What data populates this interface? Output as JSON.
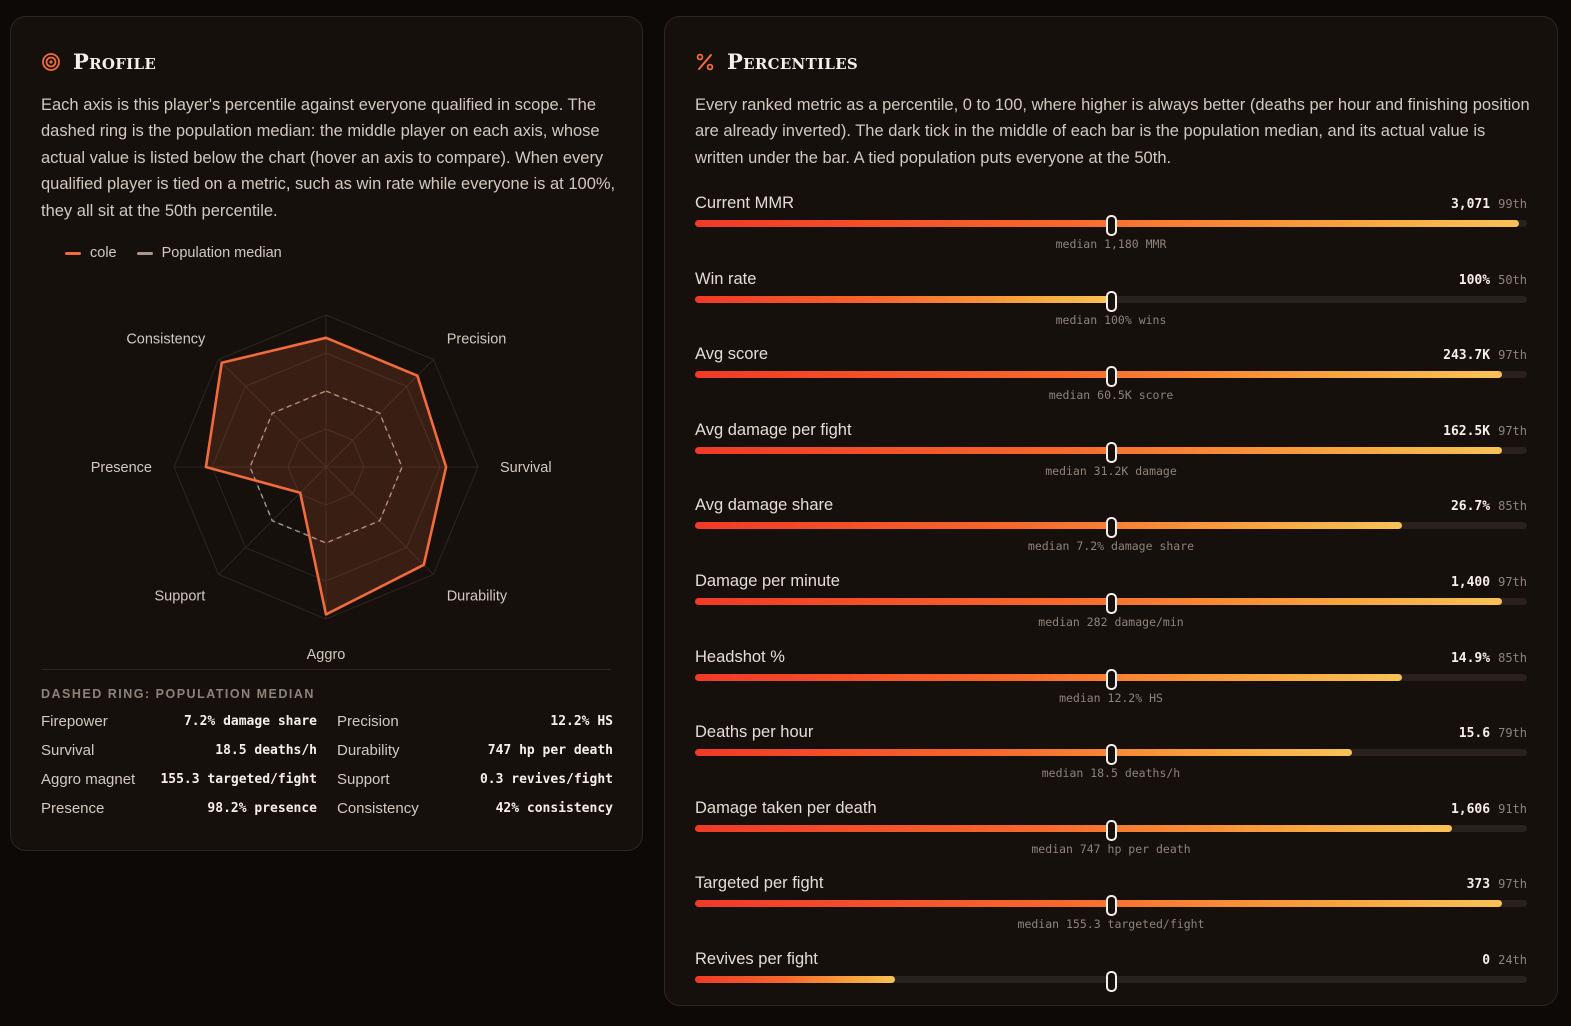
{
  "colors": {
    "accent": "#f26b3a",
    "median": "#a8978a",
    "background": "#0d0907",
    "panel": "#16100d"
  },
  "profile": {
    "icon": "target-icon",
    "title": "Profile",
    "description": "Each axis is this player's percentile against everyone qualified in scope. The dashed ring is the population median: the middle player on each axis, whose actual value is listed below the chart (hover an axis to compare). When every qualified player is tied on a metric, such as win rate while everyone is at 100%, they all sit at the 50th percentile.",
    "legend": {
      "player": "cole",
      "median": "Population median"
    },
    "axes": [
      "Firepower",
      "Precision",
      "Survival",
      "Durability",
      "Aggro",
      "Support",
      "Presence",
      "Consistency"
    ],
    "median_heading": "DASHED RING: POPULATION MEDIAN",
    "medians": [
      {
        "name": "Firepower",
        "value": "7.2% damage share"
      },
      {
        "name": "Precision",
        "value": "12.2% HS"
      },
      {
        "name": "Survival",
        "value": "18.5 deaths/h"
      },
      {
        "name": "Durability",
        "value": "747 hp per death"
      },
      {
        "name": "Aggro magnet",
        "value": "155.3 targeted/fight"
      },
      {
        "name": "Support",
        "value": "0.3 revives/fight"
      },
      {
        "name": "Presence",
        "value": "98.2% presence"
      },
      {
        "name": "Consistency",
        "value": "42% consistency"
      }
    ]
  },
  "chart_data": {
    "type": "radar",
    "axes": [
      "Firepower",
      "Precision",
      "Survival",
      "Durability",
      "Aggro",
      "Support",
      "Presence",
      "Consistency"
    ],
    "range": [
      0,
      100
    ],
    "series": [
      {
        "name": "cole",
        "values": [
          85,
          85,
          79,
          91,
          97,
          24,
          79,
          97
        ]
      },
      {
        "name": "Population median",
        "values": [
          50,
          50,
          50,
          50,
          50,
          50,
          50,
          50
        ]
      }
    ]
  },
  "percentiles": {
    "icon": "percent-icon",
    "title": "Percentiles",
    "description": "Every ranked metric as a percentile, 0 to 100, where higher is always better (deaths per hour and finishing position are already inverted). The dark tick in the middle of each bar is the population median, and its actual value is written under the bar. A tied population puts everyone at the 50th.",
    "metrics": [
      {
        "name": "Current MMR",
        "value": "3,071",
        "pct_label": "99th",
        "pct": 99,
        "median": "median 1,180 MMR"
      },
      {
        "name": "Win rate",
        "value": "100%",
        "pct_label": "50th",
        "pct": 50,
        "median": "median 100% wins"
      },
      {
        "name": "Avg score",
        "value": "243.7K",
        "pct_label": "97th",
        "pct": 97,
        "median": "median 60.5K score"
      },
      {
        "name": "Avg damage per fight",
        "value": "162.5K",
        "pct_label": "97th",
        "pct": 97,
        "median": "median 31.2K damage"
      },
      {
        "name": "Avg damage share",
        "value": "26.7%",
        "pct_label": "85th",
        "pct": 85,
        "median": "median 7.2% damage share"
      },
      {
        "name": "Damage per minute",
        "value": "1,400",
        "pct_label": "97th",
        "pct": 97,
        "median": "median 282 damage/min"
      },
      {
        "name": "Headshot %",
        "value": "14.9%",
        "pct_label": "85th",
        "pct": 85,
        "median": "median 12.2% HS"
      },
      {
        "name": "Deaths per hour",
        "value": "15.6",
        "pct_label": "79th",
        "pct": 79,
        "median": "median 18.5 deaths/h"
      },
      {
        "name": "Damage taken per death",
        "value": "1,606",
        "pct_label": "91th",
        "pct": 91,
        "median": "median 747 hp per death"
      },
      {
        "name": "Targeted per fight",
        "value": "373",
        "pct_label": "97th",
        "pct": 97,
        "median": "median 155.3 targeted/fight"
      },
      {
        "name": "Revives per fight",
        "value": "0",
        "pct_label": "24th",
        "pct": 24,
        "median": ""
      }
    ]
  }
}
